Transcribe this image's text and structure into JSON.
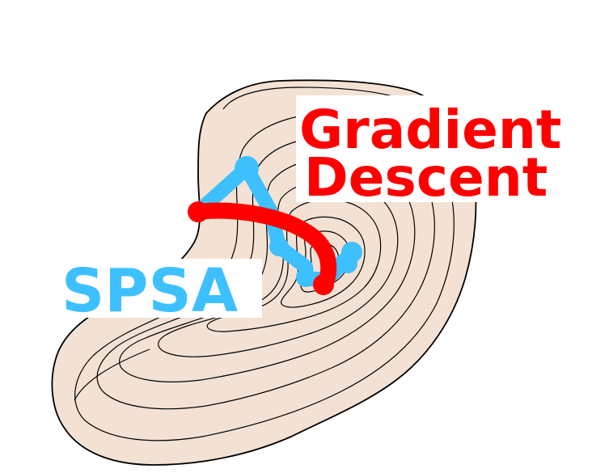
{
  "labels": {
    "gd_line1": "Gradient",
    "gd_line2": "Descent",
    "spsa": "SPSA"
  },
  "colors": {
    "terrain_fill": "#f3e2d4",
    "contour_stroke": "#000000",
    "gradient_descent": "#ff0000",
    "spsa": "#3ec0ff",
    "label_bg": "#ffffff"
  }
}
